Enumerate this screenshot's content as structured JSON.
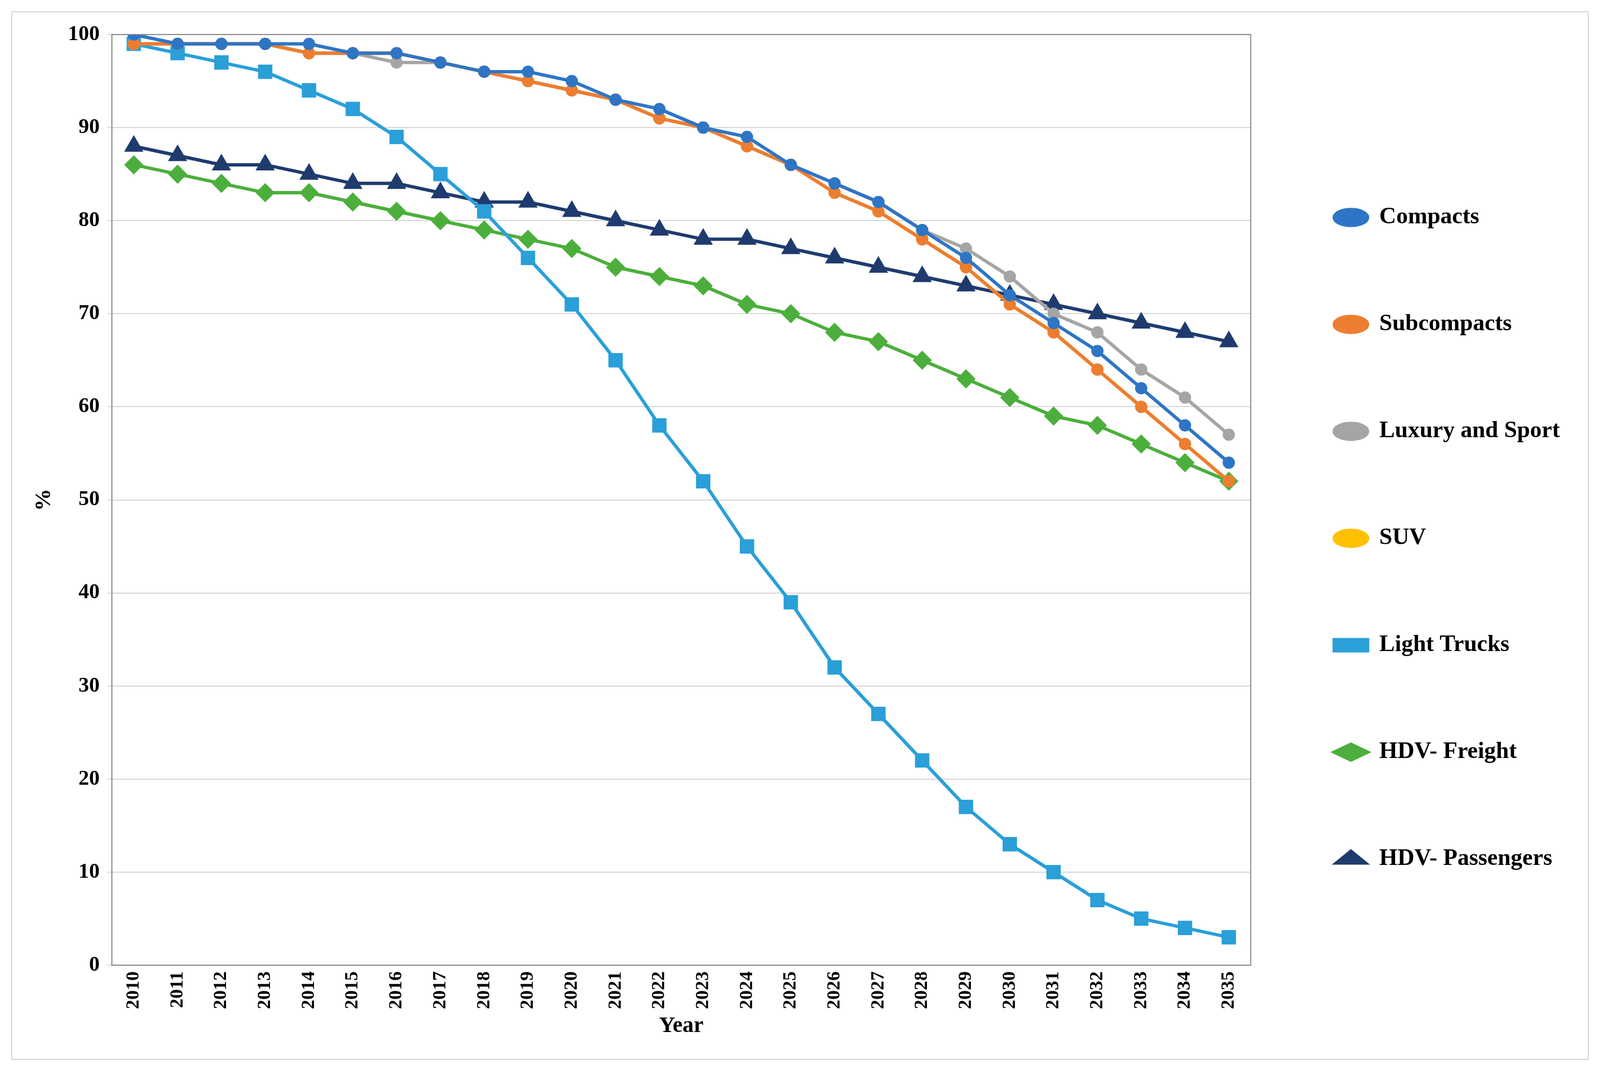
{
  "chart_data": {
    "type": "line",
    "x_label": "Year",
    "y_label": "%",
    "categories": [
      "2010",
      "2011",
      "2012",
      "2013",
      "2014",
      "2015",
      "2016",
      "2017",
      "2018",
      "2019",
      "2020",
      "2021",
      "2022",
      "2023",
      "2024",
      "2025",
      "2026",
      "2027",
      "2028",
      "2029",
      "2030",
      "2031",
      "2032",
      "2033",
      "2034",
      "2035"
    ],
    "ylim": [
      0,
      100
    ],
    "yticks": [
      0,
      10,
      20,
      30,
      40,
      50,
      60,
      70,
      80,
      90,
      100
    ],
    "grid": true,
    "legend": "right",
    "series": [
      {
        "name": "Compacts",
        "color": "#2e75c6",
        "marker": "circle",
        "values": [
          100,
          99,
          99,
          99,
          99,
          98,
          98,
          97,
          96,
          96,
          95,
          93,
          92,
          90,
          89,
          86,
          84,
          82,
          79,
          76,
          72,
          69,
          66,
          62,
          58,
          54
        ]
      },
      {
        "name": "Subcompacts",
        "color": "#ed7d31",
        "marker": "circle",
        "values": [
          99,
          99,
          99,
          99,
          98,
          98,
          98,
          97,
          96,
          95,
          94,
          93,
          91,
          90,
          88,
          86,
          83,
          81,
          78,
          75,
          71,
          68,
          64,
          60,
          56,
          52
        ]
      },
      {
        "name": "Luxury and Sport",
        "color": "#a5a5a5",
        "marker": "circle",
        "values": [
          99,
          99,
          99,
          99,
          98,
          98,
          97,
          97,
          96,
          95,
          94,
          93,
          91,
          90,
          88,
          86,
          84,
          82,
          79,
          77,
          74,
          70,
          68,
          64,
          61,
          57
        ]
      },
      {
        "name": "SUV",
        "color": "#ffc000",
        "marker": "circle",
        "values": [
          99,
          99,
          99,
          99,
          98,
          98,
          98,
          97,
          96,
          95,
          94,
          93,
          91,
          90,
          88,
          86,
          83,
          81,
          78,
          75,
          71,
          68,
          64,
          60,
          56,
          52
        ]
      },
      {
        "name": "Light Trucks",
        "color": "#2a9fd8",
        "marker": "square",
        "values": [
          99,
          98,
          97,
          96,
          94,
          92,
          89,
          85,
          81,
          76,
          71,
          65,
          58,
          52,
          45,
          39,
          32,
          27,
          22,
          17,
          13,
          10,
          7,
          5,
          4,
          3
        ]
      },
      {
        "name": "HDV- Freight",
        "color": "#4cae3c",
        "marker": "diamond",
        "values": [
          86,
          85,
          84,
          83,
          83,
          82,
          81,
          80,
          79,
          78,
          77,
          75,
          74,
          73,
          71,
          70,
          68,
          67,
          65,
          63,
          61,
          59,
          58,
          56,
          54,
          52
        ]
      },
      {
        "name": "HDV- Passengers",
        "color": "#1f3b6e",
        "marker": "triangle",
        "values": [
          88,
          87,
          86,
          86,
          85,
          84,
          84,
          83,
          82,
          82,
          81,
          80,
          79,
          78,
          78,
          77,
          76,
          75,
          74,
          73,
          72,
          71,
          70,
          69,
          68,
          67
        ]
      }
    ]
  }
}
